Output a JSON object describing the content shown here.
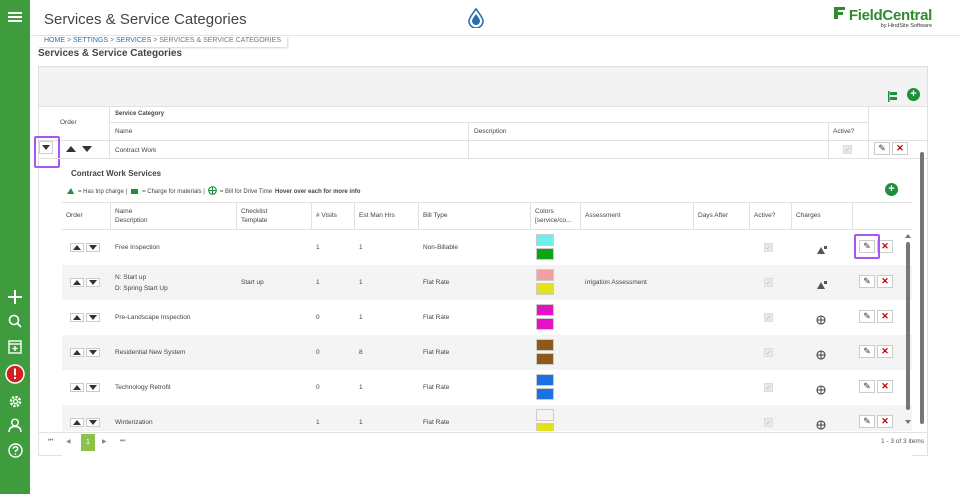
{
  "app": {
    "title": "Services & Service Categories",
    "brand_name": "FieldCentral",
    "brand_sub": "by HindSite Software"
  },
  "breadcrumb": {
    "home": "HOME",
    "sep1": " > ",
    "settings": "SETTINGS",
    "sep2": " > ",
    "services": "SERVICES",
    "sep3": " > ",
    "current": "SERVICES & SERVICE CATEGORIES"
  },
  "page": {
    "heading": "Services & Service Categories"
  },
  "categories": {
    "h_order": "Order",
    "h_group": "Service Category",
    "h_name": "Name",
    "h_desc": "Description",
    "h_active": "Active?",
    "row": {
      "name": "Contract Work",
      "description": ""
    }
  },
  "services": {
    "title": "Contract Work Services",
    "legend_trip": "= Has trip charge |",
    "legend_materials": "= Charge for materials |",
    "legend_drive": "= Bill for Drive Time",
    "legend_hover": "Hover over each for more info",
    "headers": {
      "order": "Order",
      "name": "Name",
      "description": "Description",
      "checklist": "Checklist",
      "template": "Template",
      "visits": "# Visits",
      "hrs": "Est Man Hrs",
      "bill": "Bill Type",
      "colors": "Colors",
      "colors2": "[service/co...",
      "assessment": "Assessment",
      "days": "Days After",
      "active": "Active?",
      "charges": "Charges"
    },
    "rows": [
      {
        "name": "Free Inspection",
        "checklist": "",
        "visits": "1",
        "hrs": "1",
        "bill": "Non-Billable",
        "c1": "#6ef0ee",
        "c2": "#12a21a",
        "assessment": "",
        "days": "",
        "charge": "trip"
      },
      {
        "name": "N: Start up",
        "name2": "D: Spring Start Up",
        "checklist": "Start up",
        "visits": "1",
        "hrs": "1",
        "bill": "Flat Rate",
        "c1": "#f2a0a0",
        "c2": "#e2e21a",
        "assessment": "irrigation Assessment",
        "days": "",
        "charge": "trip"
      },
      {
        "name": "Pre-Landscape Inspection",
        "checklist": "",
        "visits": "0",
        "hrs": "1",
        "bill": "Flat Rate",
        "c1": "#e412c2",
        "c2": "#e412c2",
        "assessment": "",
        "days": "",
        "charge": "drive"
      },
      {
        "name": "Residential New System",
        "checklist": "",
        "visits": "0",
        "hrs": "8",
        "bill": "Flat Rate",
        "c1": "#8a5a1a",
        "c2": "#8a5a1a",
        "assessment": "",
        "days": "",
        "charge": "drive"
      },
      {
        "name": "Technology Retrofit",
        "checklist": "",
        "visits": "0",
        "hrs": "1",
        "bill": "Flat Rate",
        "c1": "#1a72e2",
        "c2": "#1a72e2",
        "assessment": "",
        "days": "",
        "charge": "drive"
      },
      {
        "name": "Winterization",
        "checklist": "",
        "visits": "1",
        "hrs": "1",
        "bill": "Flat Rate",
        "c1": "#f4f4f4",
        "c2": "#e2e21a",
        "assessment": "",
        "days": "",
        "charge": "drive"
      }
    ]
  },
  "pager": {
    "page": "1",
    "summary": "1 - 3 of 3 items"
  }
}
